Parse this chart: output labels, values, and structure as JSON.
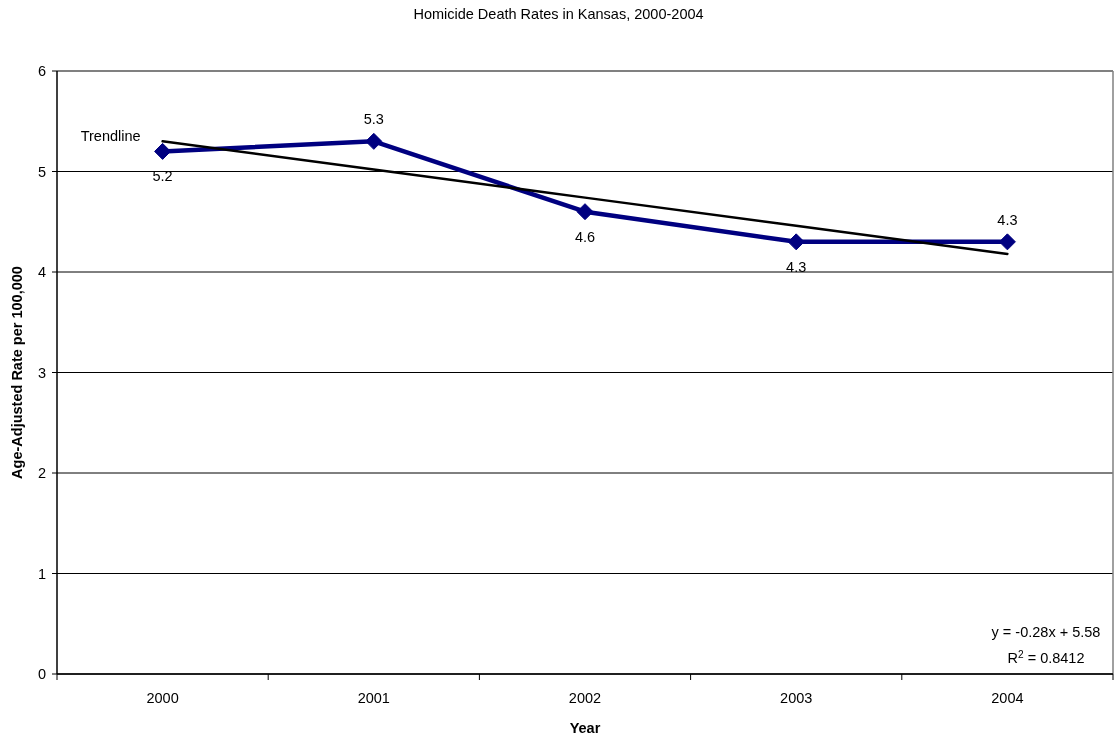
{
  "chart_data": {
    "type": "line",
    "title": "Homicide Death Rates in Kansas, 2000-2004",
    "xlabel": "Year",
    "ylabel": "Age-Adjusted Rate per 100,000",
    "categories": [
      "2000",
      "2001",
      "2002",
      "2003",
      "2004"
    ],
    "series": [
      {
        "color": "#000080",
        "values": [
          5.2,
          5.3,
          4.6,
          4.3,
          4.3
        ],
        "value_labels": [
          "5.2",
          "5.3",
          "4.6",
          "4.3",
          "4.3"
        ]
      },
      {
        "name": "Trendline",
        "type": "line",
        "color": "#000000",
        "marker": "none",
        "values": [
          5.3,
          5.02,
          4.74,
          4.46,
          4.18
        ]
      }
    ],
    "ylim": [
      0,
      6
    ],
    "yticks": [
      0,
      1,
      2,
      3,
      4,
      5,
      6
    ],
    "grid": "y",
    "marker": "diamond",
    "line_style": "solid",
    "annotations": [
      "y = -0.28x + 5.58",
      "R$^{2}$ = 0.8412"
    ]
  }
}
